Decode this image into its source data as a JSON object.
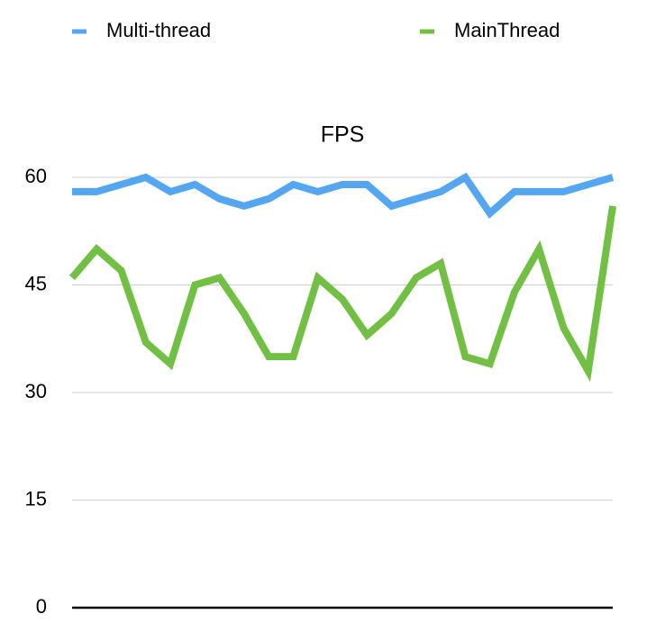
{
  "chart_data": {
    "type": "line",
    "title": "FPS",
    "categories": [
      null,
      null,
      null,
      null,
      null,
      null,
      null,
      null,
      null,
      null,
      null,
      null,
      null,
      null,
      null,
      null,
      null,
      null,
      null,
      null,
      null,
      null,
      null
    ],
    "series": [
      {
        "name": "Multi-thread",
        "color": "#55a6f2",
        "values": [
          58,
          58,
          59,
          60,
          58,
          59,
          57,
          56,
          57,
          59,
          58,
          59,
          59,
          56,
          57,
          58,
          60,
          55,
          58,
          58,
          58,
          59,
          60
        ]
      },
      {
        "name": "MainThread",
        "color": "#72c043",
        "values": [
          46,
          50,
          47,
          37,
          34,
          45,
          46,
          41,
          35,
          35,
          46,
          43,
          38,
          41,
          46,
          48,
          35,
          34,
          44,
          50,
          39,
          33,
          56
        ]
      }
    ],
    "ylim": [
      0,
      60
    ],
    "yticks": [
      0,
      15,
      30,
      45,
      60
    ],
    "grid": true,
    "legend": "top"
  }
}
